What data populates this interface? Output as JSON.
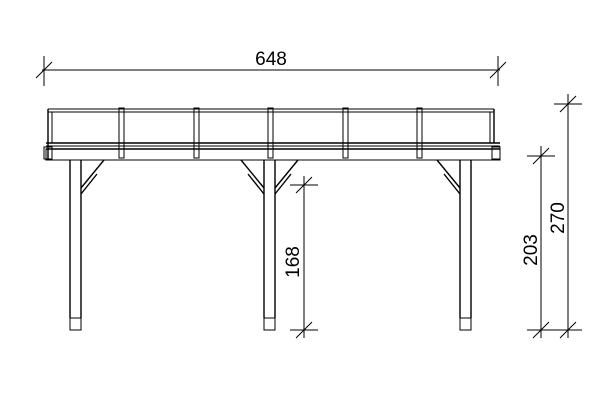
{
  "dimensions": {
    "width_label": "648",
    "post_height_label": "168",
    "eave_height_label": "203",
    "total_height_label": "270"
  },
  "colors": {
    "line": "#000000",
    "background": "#ffffff"
  }
}
